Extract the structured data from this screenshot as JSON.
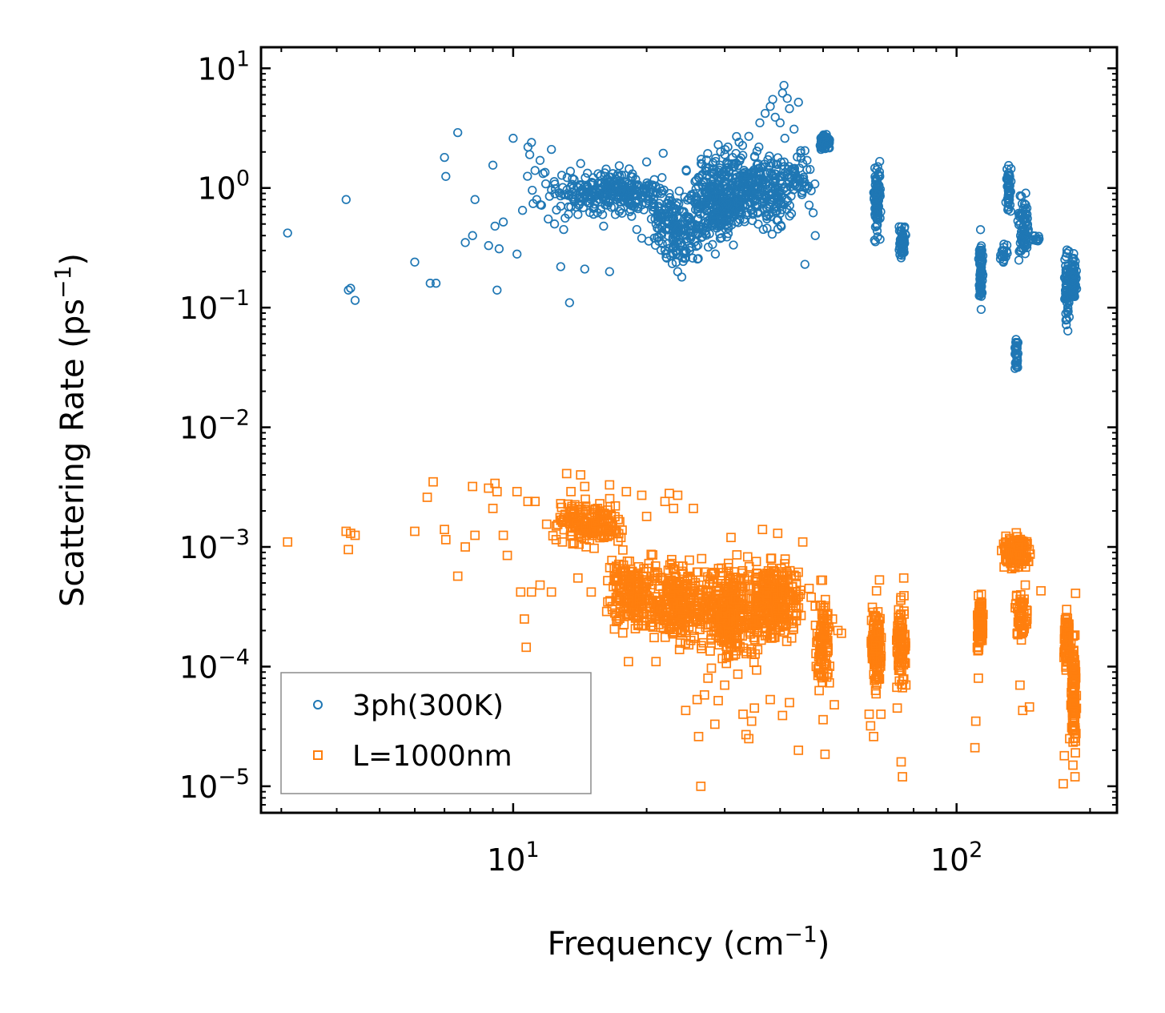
{
  "chart_data": {
    "type": "scatter",
    "title": "",
    "xlabel": "Frequency (cm⁻¹)",
    "ylabel": "Scattering Rate (ps⁻¹)",
    "xlabel_text": "Frequency (cm",
    "xlabel_sup": "−1",
    "ylabel_text": "Scattering Rate (ps",
    "ylabel_sup": "−1",
    "xscale": "log",
    "yscale": "log",
    "xlim": [
      2.7,
      230
    ],
    "ylim": [
      6e-06,
      15
    ],
    "grid": false,
    "legend_position": "lower-left",
    "x_ticks": [
      {
        "value": 10,
        "base": "10",
        "exp": "1"
      },
      {
        "value": 100,
        "base": "10",
        "exp": "2"
      }
    ],
    "y_ticks": [
      {
        "value": 1e-05,
        "base": "10",
        "exp": "−5"
      },
      {
        "value": 0.0001,
        "base": "10",
        "exp": "−4"
      },
      {
        "value": 0.001,
        "base": "10",
        "exp": "−3"
      },
      {
        "value": 0.01,
        "base": "10",
        "exp": "−2"
      },
      {
        "value": 0.1,
        "base": "10",
        "exp": "−1"
      },
      {
        "value": 1,
        "base": "10",
        "exp": "0"
      },
      {
        "value": 10,
        "base": "10",
        "exp": "1"
      }
    ],
    "series": [
      {
        "name": "3ph(300K)",
        "marker": "circle",
        "color": "#1f77b4",
        "points": [
          [
            3.1,
            0.42
          ],
          [
            4.2,
            0.8
          ],
          [
            4.25,
            0.14
          ],
          [
            4.3,
            0.145
          ],
          [
            4.4,
            0.115
          ],
          [
            6.0,
            0.24
          ],
          [
            6.5,
            0.16
          ],
          [
            6.7,
            0.16
          ],
          [
            7.0,
            1.8
          ],
          [
            7.05,
            1.25
          ],
          [
            7.5,
            2.9
          ],
          [
            7.8,
            0.35
          ],
          [
            8.1,
            0.4
          ],
          [
            8.2,
            0.8
          ],
          [
            8.8,
            0.33
          ],
          [
            9.0,
            1.55
          ],
          [
            9.1,
            0.48
          ],
          [
            9.2,
            0.14
          ],
          [
            9.3,
            0.31
          ],
          [
            9.5,
            0.52
          ],
          [
            10.0,
            2.6
          ],
          [
            10.2,
            0.28
          ],
          [
            10.5,
            0.65
          ],
          [
            10.8,
            2.2
          ],
          [
            10.9,
            1.9
          ],
          [
            11.0,
            2.4
          ],
          [
            11.2,
            1.4
          ],
          [
            11.3,
            0.8
          ],
          [
            11.5,
            1.7
          ],
          [
            11.8,
            1.35
          ],
          [
            12.0,
            0.55
          ],
          [
            12.2,
            2.1
          ],
          [
            12.4,
            0.5
          ],
          [
            12.8,
            0.22
          ],
          [
            13.0,
            0.45
          ],
          [
            13.1,
            0.56
          ],
          [
            13.4,
            0.11
          ],
          [
            13.6,
            1.2
          ],
          [
            14.0,
            0.6
          ],
          [
            14.2,
            1.6
          ],
          [
            14.5,
            0.21
          ],
          [
            15.0,
            0.8
          ],
          [
            15.5,
            0.62
          ],
          [
            16.0,
            0.48
          ],
          [
            16.5,
            0.2
          ],
          [
            17.0,
            0.6
          ],
          [
            18.5,
            0.58
          ],
          [
            19.0,
            0.45
          ],
          [
            19.5,
            0.38
          ],
          [
            20.0,
            1.65
          ],
          [
            20.5,
            0.55
          ],
          [
            21.0,
            0.5
          ],
          [
            21.8,
            1.95
          ],
          [
            22.5,
            0.9
          ],
          [
            23.0,
            0.28
          ],
          [
            23.5,
            0.2
          ],
          [
            24.0,
            0.18
          ],
          [
            24.5,
            0.26
          ],
          [
            25.0,
            0.3
          ],
          [
            29.0,
            2.3
          ],
          [
            30.0,
            1.9
          ],
          [
            30.5,
            2.2
          ],
          [
            34.0,
            2.7
          ],
          [
            36.0,
            3.5
          ],
          [
            37.0,
            4.2
          ],
          [
            38.0,
            4.8
          ],
          [
            38.5,
            5.5
          ],
          [
            39.0,
            3.9
          ],
          [
            40.0,
            3.5
          ],
          [
            40.5,
            6.2
          ],
          [
            40.8,
            7.2
          ],
          [
            41.0,
            2.6
          ],
          [
            41.5,
            5.6
          ],
          [
            42.0,
            4.6
          ],
          [
            43.0,
            3.1
          ],
          [
            44.0,
            5.2
          ],
          [
            44.5,
            2.05
          ],
          [
            45.0,
            1.6
          ],
          [
            45.5,
            2.05
          ],
          [
            46.0,
            1.7
          ],
          [
            46.5,
            0.72
          ],
          [
            47.0,
            0.95
          ],
          [
            47.5,
            0.62
          ],
          [
            48.0,
            0.4
          ],
          [
            45.5,
            0.23
          ],
          [
            44.8,
            0.88
          ]
        ],
        "clusters": [
          {
            "x": [
              10.5,
              17
            ],
            "y": [
              0.5,
              1.6
            ],
            "n": 70
          },
          {
            "x": [
              14,
              22
            ],
            "y": [
              0.55,
              1.6
            ],
            "n": 230
          },
          {
            "x": [
              20,
              27
            ],
            "y": [
              0.18,
              1.2
            ],
            "n": 180
          },
          {
            "x": [
              24,
              34
            ],
            "y": [
              0.25,
              2.3
            ],
            "n": 280
          },
          {
            "x": [
              28,
              44
            ],
            "y": [
              0.35,
              3.0
            ],
            "n": 300
          },
          {
            "x": [
              40,
              48
            ],
            "y": [
              0.6,
              2.5
            ],
            "n": 40
          },
          {
            "x": [
              49,
              52
            ],
            "y": [
              2.0,
              2.9
            ],
            "n": 90
          },
          {
            "x": [
              65,
              67.5
            ],
            "y": [
              0.28,
              2.1
            ],
            "n": 110
          },
          {
            "x": [
              74,
              77
            ],
            "y": [
              0.24,
              0.55
            ],
            "n": 60
          },
          {
            "x": [
              112,
              115
            ],
            "y": [
              0.08,
              0.52
            ],
            "n": 70
          },
          {
            "x": [
              125,
              131
            ],
            "y": [
              0.2,
              0.4
            ],
            "n": 20
          },
          {
            "x": [
              129,
              133
            ],
            "y": [
              0.45,
              1.9
            ],
            "n": 50
          },
          {
            "x": [
              135,
              138
            ],
            "y": [
              0.022,
              0.07
            ],
            "n": 35
          },
          {
            "x": [
              137,
              146
            ],
            "y": [
              0.2,
              1.05
            ],
            "n": 80
          },
          {
            "x": [
              148,
              156
            ],
            "y": [
              0.33,
              0.42
            ],
            "n": 12
          },
          {
            "x": [
              175,
              180
            ],
            "y": [
              0.058,
              0.36
            ],
            "n": 70
          },
          {
            "x": [
              181,
              187
            ],
            "y": [
              0.1,
              0.3
            ],
            "n": 60
          }
        ]
      },
      {
        "name": "L=1000nm",
        "marker": "square",
        "color": "#ff7f0e",
        "points": [
          [
            3.1,
            0.0011
          ],
          [
            4.2,
            0.00135
          ],
          [
            4.25,
            0.00095
          ],
          [
            4.3,
            0.0013
          ],
          [
            4.4,
            0.00125
          ],
          [
            6.0,
            0.00135
          ],
          [
            6.4,
            0.0026
          ],
          [
            6.6,
            0.0035
          ],
          [
            7.0,
            0.0014
          ],
          [
            7.05,
            0.00115
          ],
          [
            7.5,
            0.00057
          ],
          [
            7.8,
            0.001
          ],
          [
            8.1,
            0.0032
          ],
          [
            8.2,
            0.00125
          ],
          [
            8.8,
            0.0031
          ],
          [
            9.0,
            0.0021
          ],
          [
            9.1,
            0.0034
          ],
          [
            9.2,
            0.0029
          ],
          [
            9.5,
            0.00125
          ],
          [
            9.7,
            0.00085
          ],
          [
            10.2,
            0.0029
          ],
          [
            10.4,
            0.00042
          ],
          [
            10.6,
            0.00025
          ],
          [
            10.7,
            0.000145
          ],
          [
            10.8,
            0.0024
          ],
          [
            11.0,
            0.00042
          ],
          [
            11.2,
            0.0024
          ],
          [
            11.5,
            0.00048
          ],
          [
            11.9,
            0.00155
          ],
          [
            12.2,
            0.00042
          ],
          [
            12.5,
            0.00115
          ],
          [
            12.8,
            0.0023
          ],
          [
            13.2,
            0.0041
          ],
          [
            13.5,
            0.0029
          ],
          [
            14.0,
            0.00055
          ],
          [
            14.2,
            0.004
          ],
          [
            14.5,
            0.0032
          ],
          [
            15.0,
            0.00042
          ],
          [
            15.5,
            0.0021
          ],
          [
            16.0,
            0.0012
          ],
          [
            16.5,
            0.0033
          ],
          [
            17.0,
            0.0022
          ],
          [
            17.5,
            0.0012
          ],
          [
            18.0,
            0.0029
          ],
          [
            18.2,
            0.00011
          ],
          [
            19.5,
            0.0027
          ],
          [
            20.0,
            0.0018
          ],
          [
            21.0,
            0.00011
          ],
          [
            22.0,
            0.0024
          ],
          [
            22.5,
            0.0028
          ],
          [
            23.0,
            0.0021
          ],
          [
            23.5,
            0.0027
          ],
          [
            24.5,
            4.3e-05
          ],
          [
            25.5,
            0.0021
          ],
          [
            26.0,
            5.3e-05
          ],
          [
            26.2,
            2.6e-05
          ],
          [
            26.5,
            1e-05
          ],
          [
            27.0,
            5.8e-05
          ],
          [
            27.5,
            8e-05
          ],
          [
            28.0,
            9.7e-05
          ],
          [
            28.5,
            3.3e-05
          ],
          [
            29.0,
            5.2e-05
          ],
          [
            30.0,
            7e-05
          ],
          [
            31.0,
            0.0012
          ],
          [
            33.0,
            4e-05
          ],
          [
            33.5,
            2.7e-05
          ],
          [
            34.0,
            2.5e-05
          ],
          [
            34.5,
            3.5e-05
          ],
          [
            35.0,
            4.5e-05
          ],
          [
            36.5,
            0.0014
          ],
          [
            38.0,
            5.3e-05
          ],
          [
            39.5,
            0.0013
          ],
          [
            40.5,
            3.9e-05
          ],
          [
            42.0,
            5e-05
          ],
          [
            44.0,
            2e-05
          ],
          [
            45.0,
            0.0011
          ],
          [
            46.5,
            0.00045
          ],
          [
            47.0,
            0.00038
          ],
          [
            48.0,
            0.00032
          ],
          [
            49.0,
            6.3e-05
          ],
          [
            50.0,
            3.6e-05
          ],
          [
            50.5,
            1.85e-05
          ],
          [
            52.5,
            0.00025
          ],
          [
            53.0,
            4.8e-05
          ],
          [
            54.0,
            0.0002
          ],
          [
            55.0,
            0.00019
          ],
          [
            63.5,
            4e-05
          ],
          [
            64.0,
            3.2e-05
          ],
          [
            65.0,
            2.6e-05
          ],
          [
            66.0,
            0.00043
          ],
          [
            67.0,
            0.00053
          ],
          [
            67.5,
            4e-05
          ],
          [
            73.5,
            4.5e-05
          ],
          [
            75.0,
            1.6e-05
          ],
          [
            75.5,
            1.2e-05
          ],
          [
            76.0,
            0.00055
          ],
          [
            110.0,
            2.1e-05
          ],
          [
            110.5,
            3.5e-05
          ],
          [
            112.0,
            8e-05
          ],
          [
            139.0,
            7e-05
          ],
          [
            141.0,
            4.3e-05
          ],
          [
            146.0,
            4.6e-05
          ],
          [
            155.0,
            0.00043
          ],
          [
            174.0,
            1.05e-05
          ],
          [
            175.0,
            1.8e-05
          ],
          [
            176.0,
            0.00013
          ],
          [
            180.0,
            2.5e-05
          ],
          [
            183.0,
            1.5e-05
          ],
          [
            185.0,
            1.2e-05
          ],
          [
            185.5,
            0.00041
          ]
        ],
        "clusters": [
          {
            "x": [
              12,
              18
            ],
            "y": [
              0.0009,
              0.0028
            ],
            "n": 160
          },
          {
            "x": [
              16,
              22
            ],
            "y": [
              0.00015,
              0.0011
            ],
            "n": 200
          },
          {
            "x": [
              20,
              28
            ],
            "y": [
              0.00012,
              0.001
            ],
            "n": 260
          },
          {
            "x": [
              26,
              36
            ],
            "y": [
              8e-05,
              0.001
            ],
            "n": 340
          },
          {
            "x": [
              33,
              45
            ],
            "y": [
              0.00012,
              0.0011
            ],
            "n": 300
          },
          {
            "x": [
              48,
              52
            ],
            "y": [
              5e-05,
              0.00055
            ],
            "n": 100
          },
          {
            "x": [
              64,
              68
            ],
            "y": [
              5e-05,
              0.00044
            ],
            "n": 120
          },
          {
            "x": [
              73,
              77
            ],
            "y": [
              5e-05,
              0.00048
            ],
            "n": 90
          },
          {
            "x": [
              111,
              115
            ],
            "y": [
              0.00011,
              0.00048
            ],
            "n": 90
          },
          {
            "x": [
              126,
              148
            ],
            "y": [
              0.0006,
              0.0014
            ],
            "n": 160
          },
          {
            "x": [
              135,
              145
            ],
            "y": [
              0.00012,
              0.0005
            ],
            "n": 60
          },
          {
            "x": [
              174,
              181
            ],
            "y": [
              8e-05,
              0.00034
            ],
            "n": 70
          },
          {
            "x": [
              181,
              187
            ],
            "y": [
              1.4e-05,
              0.00025
            ],
            "n": 100
          }
        ]
      }
    ]
  }
}
